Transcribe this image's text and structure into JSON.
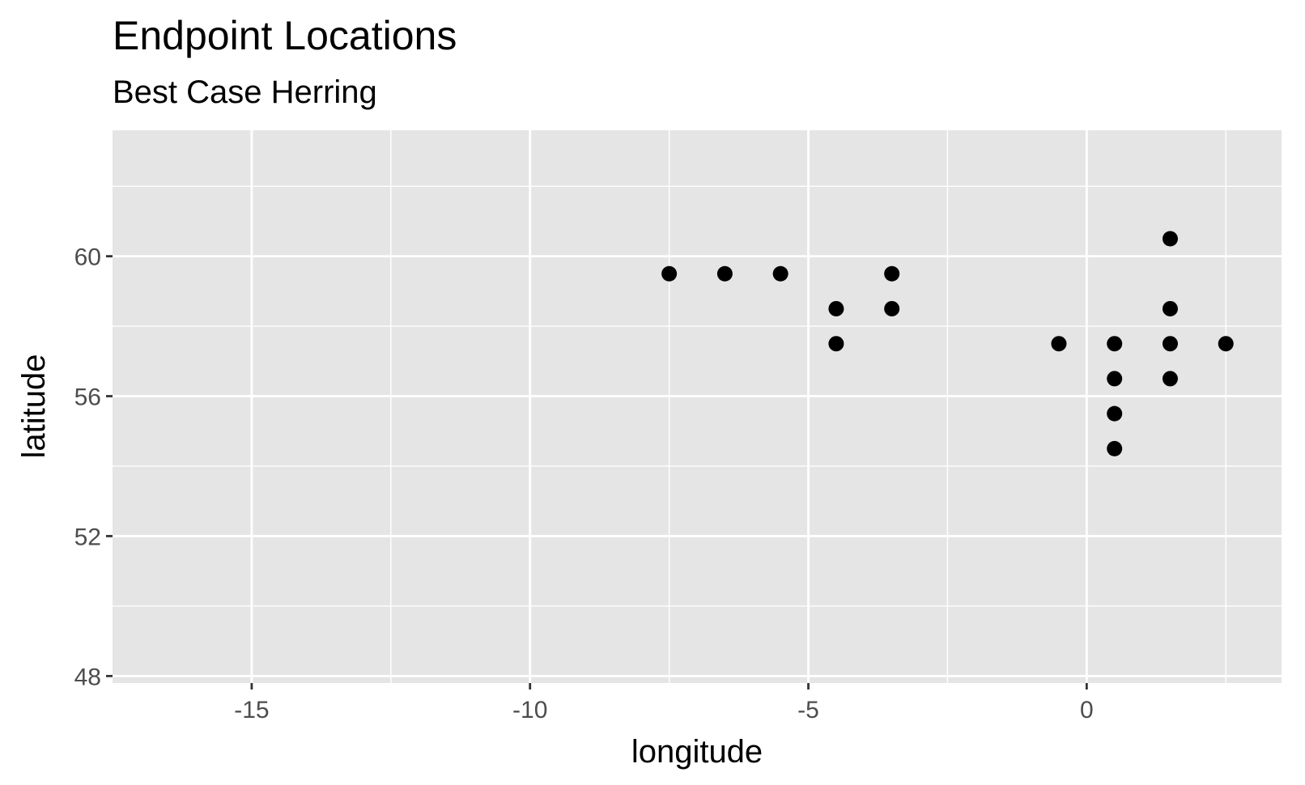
{
  "chart_data": {
    "type": "scatter",
    "title": "Endpoint Locations",
    "subtitle": "Best Case Herring",
    "xlabel": "longitude",
    "ylabel": "latitude",
    "xlim": [
      -17.5,
      3.5
    ],
    "ylim": [
      47.8,
      63.6
    ],
    "x_ticks": [
      -15,
      -10,
      -5,
      0
    ],
    "x_tick_labels": [
      "-15",
      "-10",
      "-5",
      "0"
    ],
    "x_minor_ticks": [
      -12.5,
      -7.5,
      -2.5,
      2.5
    ],
    "y_ticks": [
      48,
      52,
      56,
      60
    ],
    "y_tick_labels": [
      "48",
      "52",
      "56",
      "60"
    ],
    "y_minor_ticks": [
      50,
      54,
      58,
      62
    ],
    "grid": true,
    "legend": "none",
    "colors": {
      "panel_background": "#e5e5e5",
      "grid_line": "#ffffff",
      "point": "#000000",
      "tick_label": "#4d4d4d",
      "tick_mark": "#333333"
    },
    "points": [
      {
        "x": -7.5,
        "y": 59.5
      },
      {
        "x": -6.5,
        "y": 59.5
      },
      {
        "x": -5.5,
        "y": 59.5
      },
      {
        "x": -3.5,
        "y": 59.5
      },
      {
        "x": -4.5,
        "y": 58.5
      },
      {
        "x": -3.5,
        "y": 58.5
      },
      {
        "x": -4.5,
        "y": 57.5
      },
      {
        "x": -0.5,
        "y": 57.5
      },
      {
        "x": 0.5,
        "y": 57.5
      },
      {
        "x": 1.5,
        "y": 57.5
      },
      {
        "x": 2.5,
        "y": 57.5
      },
      {
        "x": 1.5,
        "y": 60.5
      },
      {
        "x": 1.5,
        "y": 58.5
      },
      {
        "x": 0.5,
        "y": 56.5
      },
      {
        "x": 1.5,
        "y": 56.5
      },
      {
        "x": 0.5,
        "y": 55.5
      },
      {
        "x": 0.5,
        "y": 54.5
      }
    ]
  }
}
